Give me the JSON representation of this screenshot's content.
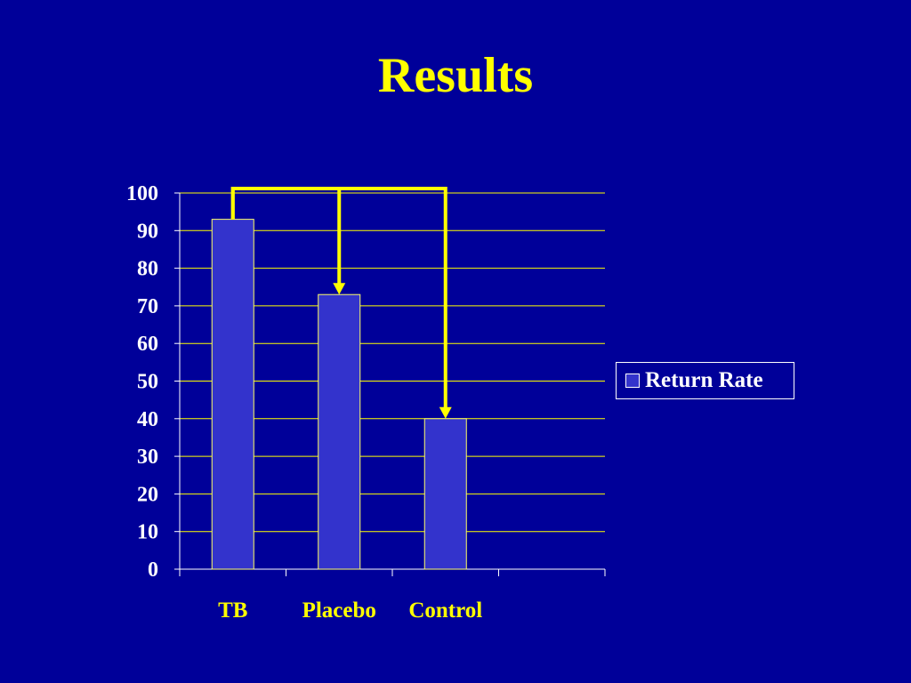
{
  "slide": {
    "title": "Results"
  },
  "colors": {
    "background": "#000099",
    "title": "#ffff00",
    "bar_fill": "#3333cc",
    "bar_stroke": "#ffff66",
    "gridline": "#ffff00",
    "arrow": "#ffff00",
    "text": "#ffffff"
  },
  "chart_data": {
    "type": "bar",
    "title": "",
    "xlabel": "",
    "ylabel": "",
    "categories": [
      "TB",
      "Placebo",
      "Control"
    ],
    "series": [
      {
        "name": "Return Rate",
        "values": [
          93,
          73,
          40
        ]
      }
    ],
    "ylim": [
      0,
      100
    ],
    "yticks": [
      "0",
      "10",
      "20",
      "30",
      "40",
      "50",
      "60",
      "70",
      "80",
      "90",
      "100"
    ],
    "grid": true,
    "legend": "right",
    "annotations": [
      {
        "type": "comparison-arrow",
        "from": "TB",
        "to": "Placebo"
      },
      {
        "type": "comparison-arrow",
        "from": "TB",
        "to": "Control"
      }
    ]
  }
}
